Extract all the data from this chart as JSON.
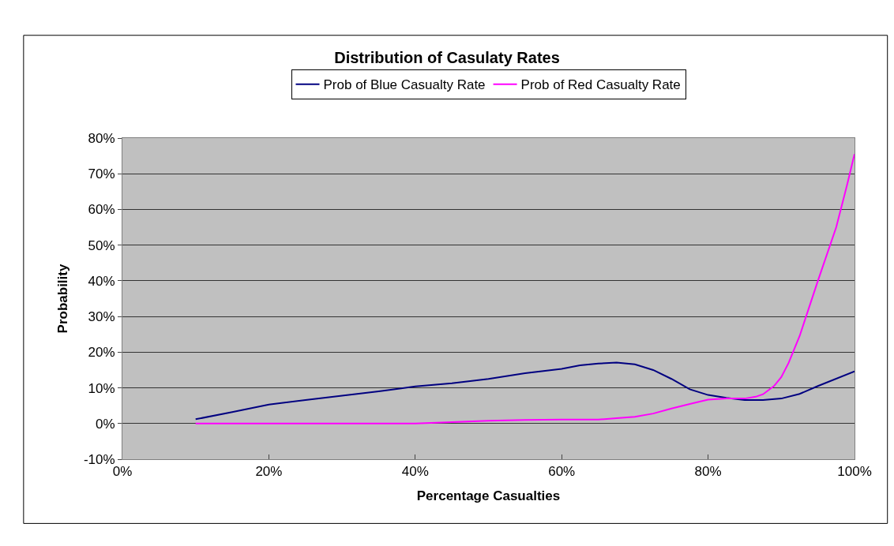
{
  "chart_data": {
    "type": "line",
    "title": "Distribution of Casulaty Rates",
    "xlabel": "Percentage Casualties",
    "ylabel": "Probability",
    "x": [
      10,
      15,
      20,
      25,
      30,
      35,
      40,
      45,
      50,
      55,
      60,
      62.5,
      65,
      67.5,
      70,
      72.5,
      75,
      77.5,
      80,
      82.5,
      85,
      87.5,
      90,
      92.5,
      95,
      100
    ],
    "series": [
      {
        "name": "Prob of Blue Casualty Rate",
        "color": "#000080",
        "values": [
          1.2,
          3.2,
          5.3,
          6.6,
          7.8,
          9,
          10.4,
          11.3,
          12.5,
          14.1,
          15.3,
          16.3,
          16.8,
          17.1,
          16.6,
          15,
          12.5,
          9.6,
          8,
          7.2,
          6.6,
          6.6,
          7,
          8.3,
          10.5,
          14.6
        ]
      },
      {
        "name": "Prob of Red Casualty Rate",
        "color": "#ff00ff",
        "x": [
          10,
          20,
          30,
          40,
          45,
          50,
          55,
          60,
          65,
          67.5,
          70,
          72.5,
          75,
          77.5,
          80,
          82.5,
          85,
          86.5,
          87.5,
          89,
          90,
          91,
          92.5,
          95,
          97.5,
          99,
          100
        ],
        "values": [
          0,
          0,
          0,
          0,
          0.4,
          0.8,
          1.0,
          1.1,
          1.1,
          1.5,
          1.9,
          2.8,
          4.2,
          5.5,
          6.7,
          7,
          7,
          7.5,
          8.2,
          10.5,
          13,
          17,
          24.5,
          40,
          55,
          67,
          75.5
        ]
      }
    ],
    "xlim": [
      0,
      100
    ],
    "xticks": [
      {
        "value": 0,
        "label": "0%"
      },
      {
        "value": 20,
        "label": "20%"
      },
      {
        "value": 40,
        "label": "40%"
      },
      {
        "value": 60,
        "label": "60%"
      },
      {
        "value": 80,
        "label": "80%"
      },
      {
        "value": 100,
        "label": "100%"
      }
    ],
    "ylim": [
      -10,
      80
    ],
    "yticks": [
      {
        "value": -10,
        "label": "-10%"
      },
      {
        "value": 0,
        "label": "0%"
      },
      {
        "value": 10,
        "label": "10%"
      },
      {
        "value": 20,
        "label": "20%"
      },
      {
        "value": 30,
        "label": "30%"
      },
      {
        "value": 40,
        "label": "40%"
      },
      {
        "value": 50,
        "label": "50%"
      },
      {
        "value": 60,
        "label": "60%"
      },
      {
        "value": 70,
        "label": "70%"
      },
      {
        "value": 80,
        "label": "80%"
      }
    ],
    "grid": "y",
    "legend": "top",
    "marker": "none",
    "line_style": "solid"
  }
}
